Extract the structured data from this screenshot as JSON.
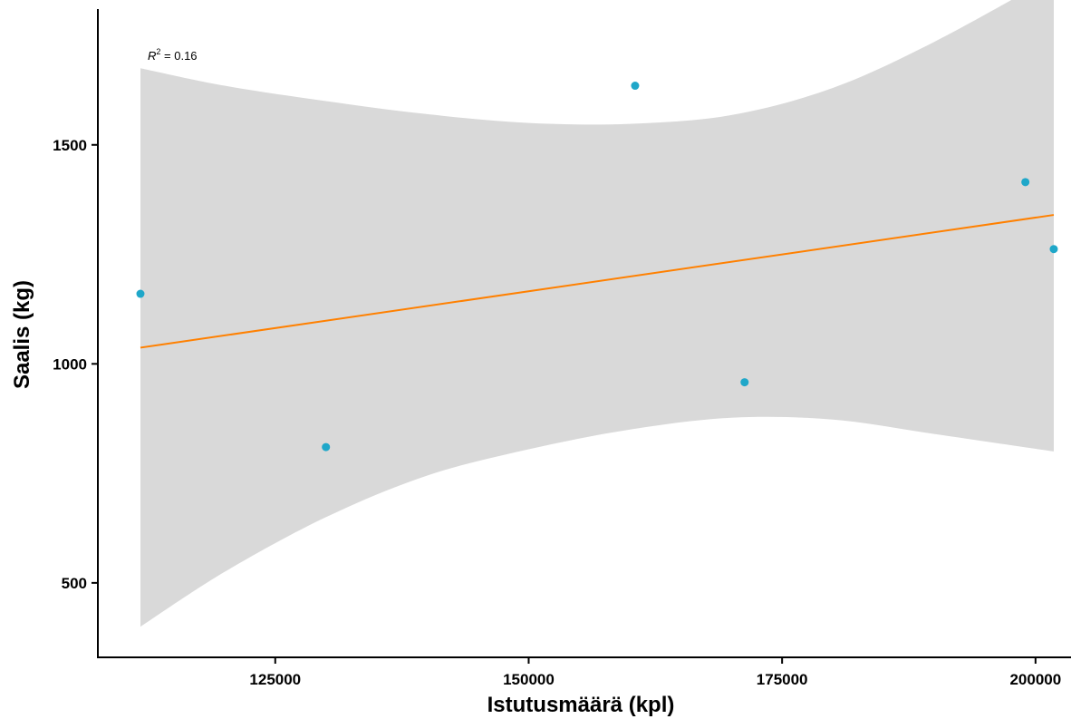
{
  "chart_data": {
    "type": "scatter",
    "xlabel": "Istutusmäärä (kpl)",
    "ylabel": "Saalis (kg)",
    "xlim": [
      107500,
      203500
    ],
    "ylim": [
      330,
      1810
    ],
    "x_ticks": [
      125000,
      150000,
      175000,
      200000
    ],
    "y_ticks": [
      500,
      1000,
      1500
    ],
    "grid": false,
    "points": [
      {
        "x": 111700,
        "y": 1160
      },
      {
        "x": 130000,
        "y": 810
      },
      {
        "x": 160500,
        "y": 1635
      },
      {
        "x": 171300,
        "y": 958
      },
      {
        "x": 199000,
        "y": 1415
      },
      {
        "x": 201800,
        "y": 1262
      }
    ],
    "regression": {
      "x_range": [
        111700,
        201800
      ],
      "y_start": 1037,
      "y_end": 1340
    },
    "confidence_band": {
      "x": [
        111700,
        120000,
        130000,
        140000,
        150000,
        160000,
        170000,
        180000,
        190000,
        201800
      ],
      "upper": [
        1675,
        1635,
        1600,
        1570,
        1550,
        1548,
        1568,
        1630,
        1735,
        1885
      ],
      "lower": [
        400,
        525,
        650,
        745,
        805,
        850,
        877,
        873,
        840,
        800
      ]
    },
    "annotation": {
      "label": "R",
      "sup": "2",
      "value": " = 0.16"
    },
    "colors": {
      "points": "#1fa7c9",
      "line": "#ff8000",
      "band": "#d9d9d9",
      "axis": "#000000"
    }
  }
}
